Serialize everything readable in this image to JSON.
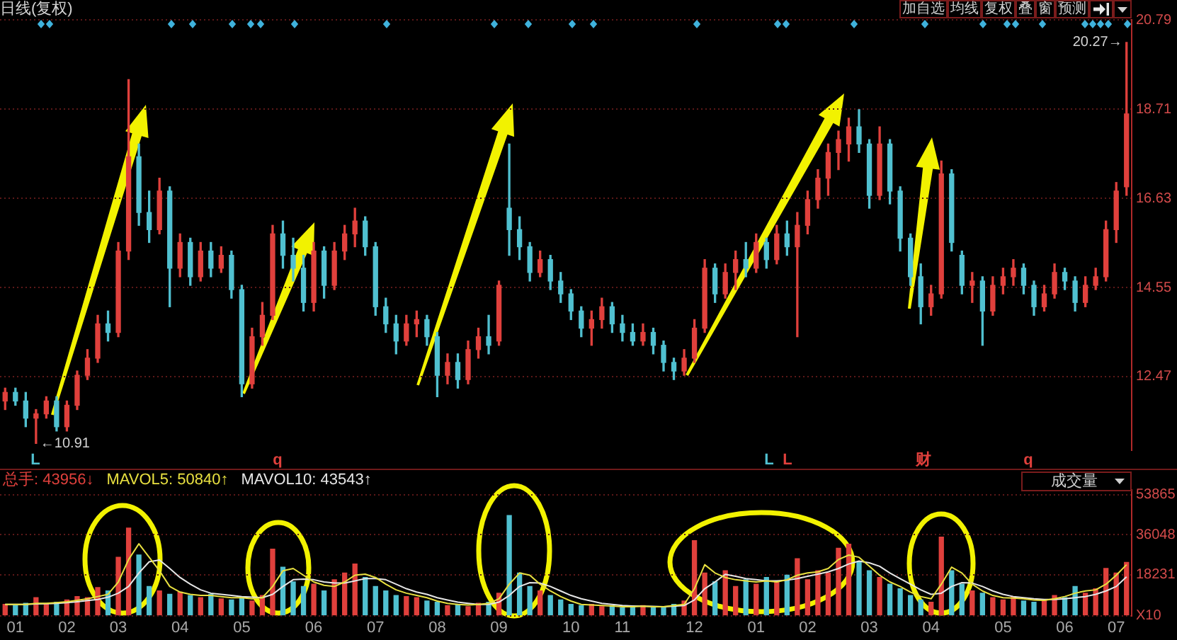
{
  "chart_data": [
    {
      "type": "candlestick",
      "title": "日线(复权)",
      "categories": [
        null,
        "01",
        null,
        null,
        null,
        null,
        "02",
        null,
        null,
        null,
        null,
        "03",
        null,
        null,
        null,
        null,
        null,
        "04",
        null,
        null,
        null,
        null,
        null,
        "05",
        null,
        null,
        null,
        null,
        null,
        null,
        "06",
        null,
        null,
        null,
        null,
        null,
        "07",
        null,
        null,
        null,
        null,
        null,
        "08",
        null,
        null,
        null,
        null,
        null,
        "09",
        null,
        null,
        null,
        null,
        null,
        null,
        "10",
        null,
        null,
        null,
        null,
        "11",
        null,
        null,
        null,
        null,
        null,
        null,
        "12",
        null,
        null,
        null,
        null,
        null,
        "01",
        null,
        null,
        null,
        null,
        "02",
        null,
        null,
        null,
        null,
        null,
        "03",
        null,
        null,
        null,
        null,
        null,
        "04",
        null,
        null,
        null,
        null,
        null,
        null,
        "05",
        null,
        null,
        null,
        null,
        null,
        "06",
        null,
        null,
        null,
        null,
        "07",
        null
      ],
      "ohlc": [
        [
          11.9,
          12.2,
          11.7,
          12.1
        ],
        [
          12.1,
          12.2,
          11.8,
          11.9
        ],
        [
          11.9,
          12.1,
          11.3,
          11.5
        ],
        [
          11.5,
          11.7,
          10.91,
          11.6
        ],
        [
          11.6,
          12.0,
          11.5,
          11.9
        ],
        [
          11.9,
          12.0,
          11.2,
          11.3
        ],
        [
          11.3,
          11.9,
          11.2,
          11.8
        ],
        [
          11.8,
          12.6,
          11.7,
          12.5
        ],
        [
          12.5,
          13.1,
          12.4,
          12.9
        ],
        [
          12.9,
          13.9,
          12.8,
          13.7
        ],
        [
          13.7,
          14.0,
          13.3,
          13.5
        ],
        [
          13.5,
          15.6,
          13.4,
          15.4
        ],
        [
          15.4,
          19.4,
          15.2,
          17.6
        ],
        [
          17.6,
          17.9,
          16.0,
          16.3
        ],
        [
          16.3,
          16.8,
          15.6,
          15.9
        ],
        [
          15.9,
          17.1,
          15.8,
          16.8
        ],
        [
          16.8,
          16.9,
          14.1,
          15.0
        ],
        [
          15.0,
          15.8,
          14.8,
          15.6
        ],
        [
          15.6,
          15.7,
          14.6,
          14.8
        ],
        [
          14.8,
          15.6,
          14.7,
          15.4
        ],
        [
          15.4,
          15.6,
          14.8,
          15.0
        ],
        [
          15.0,
          15.5,
          14.9,
          15.3
        ],
        [
          15.3,
          15.4,
          14.3,
          14.5
        ],
        [
          14.5,
          14.6,
          12.0,
          12.3
        ],
        [
          12.3,
          13.6,
          12.2,
          13.4
        ],
        [
          13.4,
          14.2,
          13.2,
          13.9
        ],
        [
          13.9,
          16.0,
          13.8,
          15.8
        ],
        [
          15.8,
          16.1,
          15.0,
          15.3
        ],
        [
          15.3,
          15.7,
          14.7,
          15.0
        ],
        [
          15.0,
          15.3,
          14.0,
          14.2
        ],
        [
          14.2,
          15.6,
          14.0,
          15.4
        ],
        [
          15.4,
          15.5,
          14.3,
          14.6
        ],
        [
          14.6,
          15.6,
          14.5,
          15.4
        ],
        [
          15.4,
          16.0,
          15.2,
          15.8
        ],
        [
          15.8,
          16.4,
          15.5,
          16.1
        ],
        [
          16.1,
          16.2,
          15.3,
          15.5
        ],
        [
          15.5,
          15.6,
          13.9,
          14.1
        ],
        [
          14.1,
          14.3,
          13.5,
          13.7
        ],
        [
          13.7,
          13.9,
          13.0,
          13.3
        ],
        [
          13.3,
          13.9,
          13.2,
          13.7
        ],
        [
          13.7,
          14.0,
          13.4,
          13.8
        ],
        [
          13.8,
          13.9,
          13.2,
          13.4
        ],
        [
          13.4,
          13.5,
          12.0,
          12.5
        ],
        [
          12.5,
          13.0,
          12.3,
          12.8
        ],
        [
          12.8,
          13.0,
          12.2,
          12.4
        ],
        [
          12.4,
          13.3,
          12.3,
          13.1
        ],
        [
          13.1,
          13.6,
          12.9,
          13.4
        ],
        [
          13.4,
          13.9,
          13.0,
          13.2
        ],
        [
          13.3,
          14.7,
          13.2,
          14.6
        ],
        [
          16.4,
          17.9,
          15.3,
          15.9
        ],
        [
          15.9,
          16.2,
          15.2,
          15.5
        ],
        [
          15.5,
          15.6,
          14.7,
          14.9
        ],
        [
          14.9,
          15.4,
          14.8,
          15.2
        ],
        [
          15.2,
          15.3,
          14.5,
          14.7
        ],
        [
          14.7,
          14.9,
          14.2,
          14.4
        ],
        [
          14.4,
          14.5,
          13.8,
          14.0
        ],
        [
          14.0,
          14.1,
          13.4,
          13.6
        ],
        [
          13.6,
          14.0,
          13.2,
          13.8
        ],
        [
          13.8,
          14.3,
          13.6,
          14.1
        ],
        [
          14.1,
          14.2,
          13.5,
          13.7
        ],
        [
          13.7,
          13.9,
          13.3,
          13.5
        ],
        [
          13.5,
          13.7,
          13.2,
          13.3
        ],
        [
          13.3,
          13.7,
          13.2,
          13.5
        ],
        [
          13.5,
          13.6,
          13.0,
          13.2
        ],
        [
          13.2,
          13.3,
          12.6,
          12.8
        ],
        [
          12.8,
          12.9,
          12.4,
          12.6
        ],
        [
          12.6,
          13.1,
          12.5,
          12.9
        ],
        [
          12.9,
          13.8,
          12.8,
          13.6
        ],
        [
          13.6,
          15.2,
          13.5,
          15.0
        ],
        [
          15.0,
          15.1,
          14.2,
          14.4
        ],
        [
          14.4,
          15.1,
          14.3,
          14.9
        ],
        [
          14.9,
          15.4,
          14.5,
          15.2
        ],
        [
          15.2,
          15.6,
          14.8,
          15.0
        ],
        [
          15.0,
          15.8,
          14.9,
          15.6
        ],
        [
          15.6,
          15.7,
          15.0,
          15.2
        ],
        [
          15.2,
          16.0,
          15.1,
          15.8
        ],
        [
          15.8,
          16.1,
          15.3,
          15.5
        ],
        [
          15.5,
          16.3,
          13.4,
          16.0
        ],
        [
          16.0,
          16.8,
          15.8,
          16.6
        ],
        [
          16.6,
          17.3,
          16.4,
          17.1
        ],
        [
          17.1,
          17.9,
          16.7,
          17.7
        ],
        [
          17.7,
          18.2,
          17.3,
          18.0
        ],
        [
          17.9,
          18.5,
          17.5,
          18.3
        ],
        [
          18.3,
          18.7,
          17.7,
          17.9
        ],
        [
          17.9,
          18.0,
          16.4,
          16.7
        ],
        [
          16.7,
          18.3,
          16.6,
          17.9
        ],
        [
          17.9,
          18.0,
          16.5,
          16.8
        ],
        [
          16.8,
          16.9,
          15.4,
          15.7
        ],
        [
          15.7,
          15.8,
          14.6,
          14.8
        ],
        [
          14.8,
          15.1,
          13.7,
          14.1
        ],
        [
          14.1,
          14.6,
          13.9,
          14.4
        ],
        [
          14.4,
          17.5,
          14.3,
          17.2
        ],
        [
          17.2,
          17.3,
          15.4,
          15.6
        ],
        [
          15.3,
          15.4,
          14.4,
          14.6
        ],
        [
          14.6,
          14.9,
          14.2,
          14.7
        ],
        [
          14.7,
          14.8,
          13.2,
          14.0
        ],
        [
          14.0,
          14.8,
          13.9,
          14.6
        ],
        [
          14.6,
          15.0,
          14.4,
          14.8
        ],
        [
          14.8,
          15.2,
          14.6,
          15.0
        ],
        [
          15.0,
          15.1,
          14.4,
          14.6
        ],
        [
          14.6,
          14.7,
          13.9,
          14.1
        ],
        [
          14.1,
          14.6,
          14.0,
          14.4
        ],
        [
          14.4,
          15.1,
          14.3,
          14.9
        ],
        [
          14.9,
          15.0,
          14.5,
          14.7
        ],
        [
          14.7,
          14.8,
          14.0,
          14.2
        ],
        [
          14.2,
          14.8,
          14.1,
          14.6
        ],
        [
          14.6,
          15.0,
          14.5,
          14.8
        ],
        [
          14.8,
          16.1,
          14.7,
          15.9
        ],
        [
          15.9,
          17.0,
          15.6,
          16.8
        ],
        [
          16.9,
          20.27,
          16.7,
          18.6
        ]
      ],
      "colors": [
        "#e0403c",
        "#50c0d0",
        "#50c0d0",
        "#e0403c",
        "#e0403c",
        "#50c0d0",
        "#e0403c",
        "#e0403c",
        "#e0403c",
        "#e0403c",
        "#50c0d0",
        "#e0403c",
        "#e0403c",
        "#50c0d0",
        "#50c0d0",
        "#e0403c",
        "#50c0d0",
        "#e0403c",
        "#50c0d0",
        "#e0403c",
        "#50c0d0",
        "#e0403c",
        "#50c0d0",
        "#50c0d0",
        "#e0403c",
        "#e0403c",
        "#e0403c",
        "#50c0d0",
        "#50c0d0",
        "#50c0d0",
        "#e0403c",
        "#50c0d0",
        "#e0403c",
        "#e0403c",
        "#e0403c",
        "#50c0d0",
        "#50c0d0",
        "#50c0d0",
        "#50c0d0",
        "#e0403c",
        "#e0403c",
        "#50c0d0",
        "#50c0d0",
        "#e0403c",
        "#50c0d0",
        "#e0403c",
        "#e0403c",
        "#50c0d0",
        "#e0403c",
        "#50c0d0",
        "#50c0d0",
        "#50c0d0",
        "#e0403c",
        "#50c0d0",
        "#50c0d0",
        "#50c0d0",
        "#50c0d0",
        "#e0403c",
        "#e0403c",
        "#50c0d0",
        "#50c0d0",
        "#50c0d0",
        "#e0403c",
        "#50c0d0",
        "#50c0d0",
        "#50c0d0",
        "#e0403c",
        "#e0403c",
        "#e0403c",
        "#50c0d0",
        "#e0403c",
        "#e0403c",
        "#50c0d0",
        "#e0403c",
        "#50c0d0",
        "#e0403c",
        "#50c0d0",
        "#e0403c",
        "#e0403c",
        "#e0403c",
        "#e0403c",
        "#e0403c",
        "#e0403c",
        "#50c0d0",
        "#50c0d0",
        "#e0403c",
        "#50c0d0",
        "#50c0d0",
        "#50c0d0",
        "#50c0d0",
        "#e0403c",
        "#e0403c",
        "#50c0d0",
        "#50c0d0",
        "#e0403c",
        "#50c0d0",
        "#e0403c",
        "#e0403c",
        "#e0403c",
        "#50c0d0",
        "#50c0d0",
        "#e0403c",
        "#e0403c",
        "#50c0d0",
        "#50c0d0",
        "#e0403c",
        "#e0403c",
        "#e0403c",
        "#e0403c",
        "#e0403c"
      ],
      "ylim": [
        10.75,
        20.79
      ],
      "yticks": [
        12.47,
        14.55,
        16.63,
        18.71,
        20.79
      ],
      "grid": "y",
      "tick_labels": "y",
      "annotations": [
        "←10.91",
        "20.27→",
        "L",
        "q",
        "L",
        "L",
        "财",
        "q"
      ]
    },
    {
      "type": "bar",
      "categories": [
        null,
        "01",
        null,
        null,
        null,
        null,
        "02",
        null,
        null,
        null,
        null,
        "03",
        null,
        null,
        null,
        null,
        null,
        "04",
        null,
        null,
        null,
        null,
        null,
        "05",
        null,
        null,
        null,
        null,
        null,
        null,
        "06",
        null,
        null,
        null,
        null,
        null,
        "07",
        null,
        null,
        null,
        null,
        null,
        "08",
        null,
        null,
        null,
        null,
        null,
        "09",
        null,
        null,
        null,
        null,
        null,
        null,
        "10",
        null,
        null,
        null,
        null,
        "11",
        null,
        null,
        null,
        null,
        null,
        null,
        "12",
        null,
        null,
        null,
        null,
        null,
        "01",
        null,
        null,
        null,
        null,
        "02",
        null,
        null,
        null,
        null,
        null,
        "03",
        null,
        null,
        null,
        null,
        null,
        "04",
        null,
        null,
        null,
        null,
        null,
        null,
        "05",
        null,
        null,
        null,
        null,
        null,
        "06",
        null,
        null,
        null,
        null,
        "07",
        null
      ],
      "series": [
        {
          "name": "总手: 43956↓",
          "type": "bar",
          "color": "#e0403c",
          "colors": [
            "#e0403c",
            "#50c0d0",
            "#50c0d0",
            "#e0403c",
            "#e0403c",
            "#50c0d0",
            "#e0403c",
            "#e0403c",
            "#e0403c",
            "#e0403c",
            "#50c0d0",
            "#e0403c",
            "#e0403c",
            "#50c0d0",
            "#50c0d0",
            "#e0403c",
            "#50c0d0",
            "#e0403c",
            "#50c0d0",
            "#e0403c",
            "#50c0d0",
            "#e0403c",
            "#50c0d0",
            "#50c0d0",
            "#e0403c",
            "#e0403c",
            "#e0403c",
            "#50c0d0",
            "#50c0d0",
            "#50c0d0",
            "#e0403c",
            "#50c0d0",
            "#e0403c",
            "#e0403c",
            "#e0403c",
            "#50c0d0",
            "#50c0d0",
            "#50c0d0",
            "#50c0d0",
            "#e0403c",
            "#e0403c",
            "#50c0d0",
            "#50c0d0",
            "#e0403c",
            "#50c0d0",
            "#e0403c",
            "#e0403c",
            "#50c0d0",
            "#e0403c",
            "#50c0d0",
            "#50c0d0",
            "#50c0d0",
            "#e0403c",
            "#50c0d0",
            "#50c0d0",
            "#50c0d0",
            "#50c0d0",
            "#e0403c",
            "#e0403c",
            "#50c0d0",
            "#50c0d0",
            "#50c0d0",
            "#e0403c",
            "#50c0d0",
            "#50c0d0",
            "#50c0d0",
            "#e0403c",
            "#e0403c",
            "#e0403c",
            "#50c0d0",
            "#e0403c",
            "#e0403c",
            "#50c0d0",
            "#e0403c",
            "#50c0d0",
            "#e0403c",
            "#50c0d0",
            "#e0403c",
            "#e0403c",
            "#e0403c",
            "#e0403c",
            "#e0403c",
            "#e0403c",
            "#50c0d0",
            "#50c0d0",
            "#e0403c",
            "#50c0d0",
            "#50c0d0",
            "#50c0d0",
            "#50c0d0",
            "#e0403c",
            "#e0403c",
            "#50c0d0",
            "#50c0d0",
            "#e0403c",
            "#50c0d0",
            "#e0403c",
            "#e0403c",
            "#e0403c",
            "#50c0d0",
            "#50c0d0",
            "#e0403c",
            "#e0403c",
            "#50c0d0",
            "#50c0d0",
            "#e0403c",
            "#e0403c",
            "#e0403c",
            "#e0403c",
            "#e0403c"
          ],
          "values": [
            5000,
            4500,
            5500,
            8000,
            5000,
            6000,
            7000,
            8500,
            8000,
            12500,
            11000,
            26000,
            39000,
            27000,
            13000,
            11000,
            9500,
            10500,
            9000,
            8000,
            9500,
            7500,
            7000,
            8500,
            6500,
            9000,
            29600,
            21600,
            15000,
            13000,
            14000,
            11000,
            16000,
            19000,
            23000,
            17000,
            13000,
            11000,
            9000,
            8500,
            8000,
            6500,
            6000,
            4500,
            5000,
            4000,
            5500,
            6000,
            10000,
            44600,
            19000,
            13000,
            11000,
            9000,
            7000,
            5000,
            4500,
            5000,
            4000,
            4500,
            3500,
            4000,
            4500,
            3500,
            4000,
            5000,
            6500,
            33400,
            19000,
            15000,
            20000,
            13000,
            16000,
            14000,
            17000,
            15000,
            18000,
            25400,
            16000,
            20000,
            19000,
            30000,
            31800,
            24000,
            20000,
            17000,
            14000,
            12000,
            9000,
            7000,
            6000,
            35000,
            20000,
            14000,
            11000,
            10000,
            8000,
            7000,
            8500,
            6500,
            6000,
            7000,
            9000,
            8000,
            13000,
            10000,
            12000,
            21000,
            19000,
            23700
          ]
        },
        {
          "name": "MAVOL5: 50840↑",
          "type": "line",
          "color": "#e8e040",
          "values": [
            5000,
            5000,
            5000,
            5500,
            5500,
            5800,
            6200,
            6800,
            7500,
            8500,
            9500,
            15000,
            25000,
            32000,
            26000,
            20000,
            13000,
            10500,
            9500,
            9000,
            9000,
            8500,
            8000,
            8000,
            7500,
            8000,
            13000,
            20000,
            21000,
            18000,
            15000,
            13500,
            13000,
            15000,
            18000,
            18500,
            17000,
            14000,
            11500,
            10000,
            9000,
            8000,
            6500,
            5500,
            5000,
            4800,
            5000,
            5500,
            7500,
            14000,
            19000,
            18000,
            14000,
            11000,
            8500,
            6500,
            5000,
            4800,
            4500,
            4300,
            4000,
            4000,
            4200,
            4000,
            4000,
            4500,
            5000,
            12000,
            22700,
            19000,
            17000,
            16000,
            15500,
            15000,
            15500,
            15000,
            16000,
            18000,
            19000,
            19500,
            21000,
            25000,
            27000,
            26000,
            22000,
            18000,
            15000,
            13000,
            10500,
            8500,
            7500,
            14000,
            21600,
            19000,
            14000,
            11000,
            9000,
            8000,
            7800,
            7500,
            7000,
            6800,
            7500,
            8500,
            10000,
            11000,
            11500,
            14000,
            18000,
            22700
          ]
        },
        {
          "name": "MAVOL10: 43543↑",
          "type": "line",
          "color": "#e6e6e6",
          "values": [
            5000,
            5000,
            5000,
            5200,
            5300,
            5500,
            5800,
            6200,
            6700,
            7200,
            8200,
            10000,
            13000,
            19000,
            24000,
            24800,
            21000,
            17000,
            14000,
            11500,
            10000,
            9500,
            9000,
            8500,
            8200,
            8000,
            9500,
            13000,
            16000,
            16300,
            16000,
            15000,
            14500,
            14500,
            15500,
            16500,
            16500,
            16000,
            14000,
            12000,
            10500,
            9500,
            8000,
            7000,
            6000,
            5500,
            5000,
            5000,
            6000,
            9000,
            13000,
            14700,
            14500,
            13000,
            11000,
            9000,
            7500,
            6500,
            5500,
            5000,
            4500,
            4300,
            4200,
            4100,
            4000,
            4200,
            4500,
            7000,
            12000,
            15000,
            18400,
            17500,
            16500,
            16000,
            15500,
            15500,
            15800,
            16500,
            17500,
            18500,
            19500,
            21000,
            23000,
            24300,
            23500,
            22000,
            19000,
            16500,
            14000,
            11500,
            9500,
            10000,
            13000,
            14700,
            14500,
            13000,
            11000,
            9500,
            8500,
            8000,
            7500,
            7200,
            7200,
            7500,
            8000,
            8500,
            9500,
            11000,
            13000,
            17300
          ]
        }
      ],
      "ylim": [
        0,
        56000
      ],
      "yticks": [
        {
          "value": 0,
          "label": "X10"
        },
        18231,
        36048,
        53865
      ],
      "grid": "y",
      "legend": "top left",
      "annotations": [
        "成交量"
      ]
    },
    {
      "type": "other",
      "annotations": [
        "加自选",
        "均线",
        "复权",
        "叠",
        "窗",
        "预测"
      ]
    }
  ]
}
